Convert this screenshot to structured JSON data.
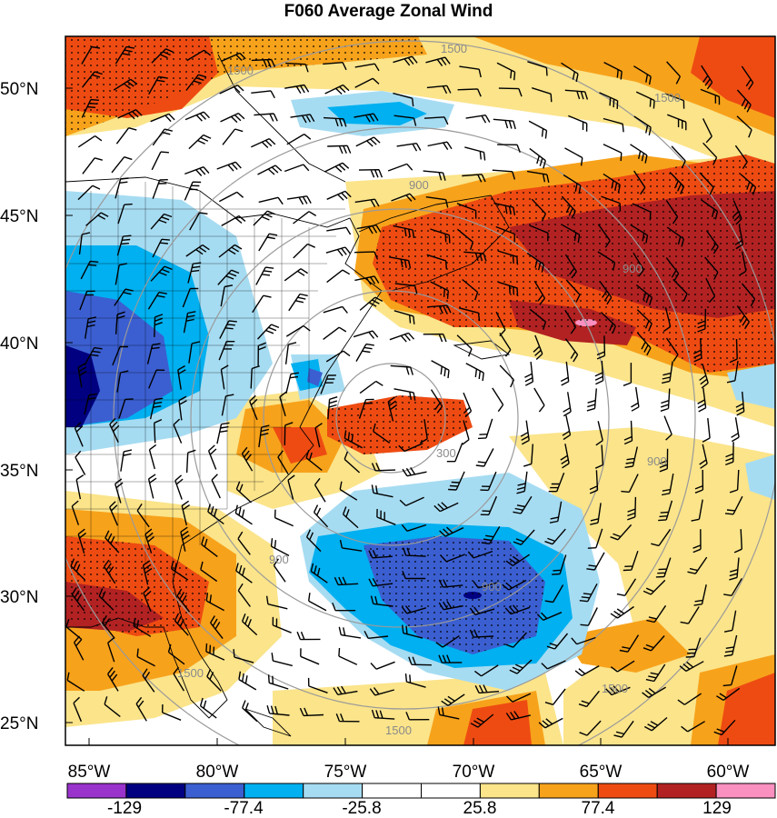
{
  "title": "F060 Average Zonal Wind",
  "lat_labels": [
    "50°N",
    "45°N",
    "40°N",
    "35°N",
    "30°N",
    "25°N"
  ],
  "lon_labels": [
    "85°W",
    "80°W",
    "75°W",
    "70°W",
    "65°W",
    "60°W"
  ],
  "colorbar": {
    "colors": [
      "#9933cc",
      "#000080",
      "#3b5fd1",
      "#00b0f0",
      "#a6dcf2",
      "#ffffff",
      "#ffffff",
      "#fbe48a",
      "#f7a21b",
      "#ee4b12",
      "#b22222",
      "#f990c0"
    ],
    "labels": [
      "-129",
      "-77.4",
      "-25.8",
      "25.8",
      "77.4",
      "129"
    ]
  },
  "contour_labels": [
    "1500",
    "1500",
    "1500",
    "900",
    "900",
    "900",
    "900",
    "300",
    "900",
    "1500",
    "1500",
    "1500"
  ],
  "field_colors": {
    "strong_east": "#b22222",
    "east": "#ee4b12",
    "mod_east": "#f7a21b",
    "weak_east": "#fbe48a",
    "weak_west": "#a6dcf2",
    "west": "#00b0f0",
    "mod_west": "#3b5fd1",
    "strong_west": "#000080",
    "max": "#f990c0"
  }
}
